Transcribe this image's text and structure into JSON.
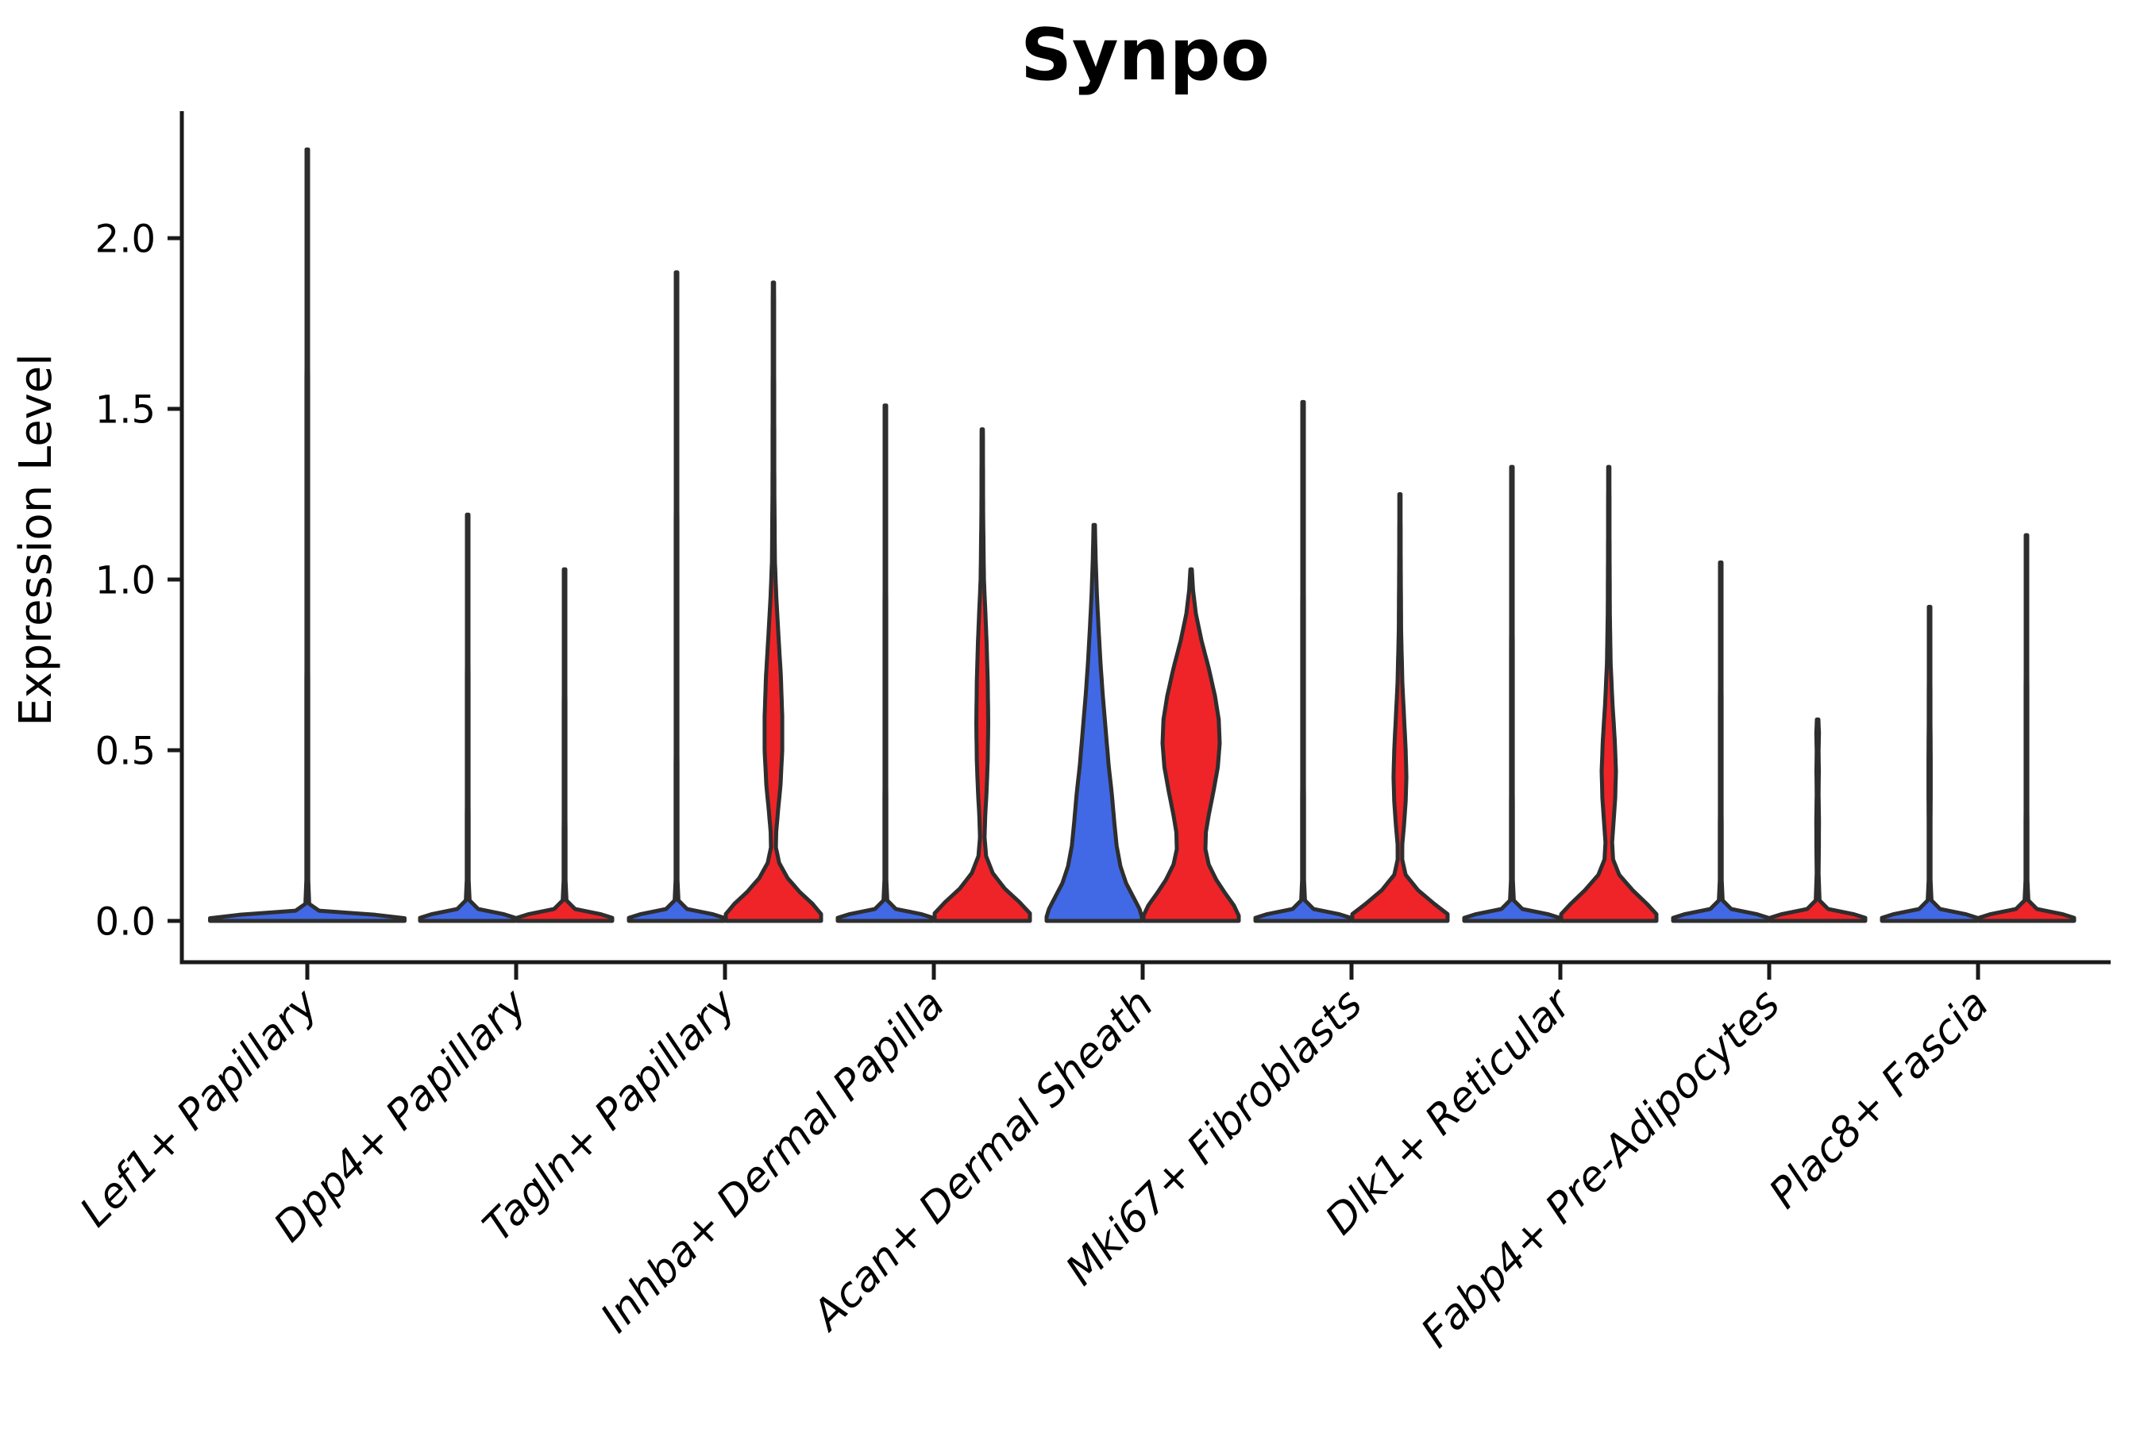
{
  "chart_data": {
    "type": "violin",
    "title": "Synpo",
    "ylabel": "Expression Level",
    "yticks": [
      "0.0",
      "0.5",
      "1.0",
      "1.5",
      "2.0"
    ],
    "ylim": [
      0,
      2.4
    ],
    "grid": false,
    "legend": "none",
    "split_groups": [
      "group1-blue",
      "group2-red"
    ],
    "categories": [
      "Lef1+ Papillary",
      "Dpp4+ Papillary",
      "Tagln+ Papillary",
      "Inhba+ Dermal Papilla",
      "Acan+ Dermal Sheath",
      "Mki67+ Fibroblasts",
      "Dlk1+ Reticular",
      "Fabp4+ Pre-Adipocytes",
      "Plac8+ Fascia"
    ],
    "violins": [
      {
        "category_index": 0,
        "side": "center",
        "color": "blue",
        "max": 2.26,
        "profile": [
          [
            2.26,
            0.008
          ],
          [
            1.1,
            0.009
          ],
          [
            0.12,
            0.01
          ],
          [
            0.05,
            0.02
          ],
          [
            0.03,
            0.12
          ],
          [
            0.018,
            0.7
          ],
          [
            0.008,
            1
          ],
          [
            0,
            1
          ]
        ]
      },
      {
        "category_index": 1,
        "side": "left",
        "color": "blue",
        "max": 1.19,
        "profile": [
          [
            1.19,
            0.016
          ],
          [
            0.6,
            0.018
          ],
          [
            0.12,
            0.02
          ],
          [
            0.06,
            0.04
          ],
          [
            0.035,
            0.22
          ],
          [
            0.02,
            0.75
          ],
          [
            0.009,
            1
          ],
          [
            0,
            1
          ]
        ]
      },
      {
        "category_index": 1,
        "side": "right",
        "color": "red",
        "max": 1.03,
        "profile": [
          [
            1.03,
            0.016
          ],
          [
            0.52,
            0.018
          ],
          [
            0.12,
            0.02
          ],
          [
            0.06,
            0.04
          ],
          [
            0.035,
            0.22
          ],
          [
            0.02,
            0.75
          ],
          [
            0.009,
            1
          ],
          [
            0,
            1
          ]
        ]
      },
      {
        "category_index": 2,
        "side": "left",
        "color": "blue",
        "max": 1.9,
        "profile": [
          [
            1.9,
            0.016
          ],
          [
            0.95,
            0.018
          ],
          [
            0.12,
            0.02
          ],
          [
            0.06,
            0.04
          ],
          [
            0.035,
            0.22
          ],
          [
            0.02,
            0.75
          ],
          [
            0.009,
            1
          ],
          [
            0,
            1
          ]
        ]
      },
      {
        "category_index": 2,
        "side": "right",
        "color": "red",
        "max": 1.87,
        "profile": [
          [
            1.87,
            0.014
          ],
          [
            1.55,
            0.016
          ],
          [
            1.25,
            0.02
          ],
          [
            1.05,
            0.032
          ],
          [
            0.95,
            0.06
          ],
          [
            0.85,
            0.1
          ],
          [
            0.72,
            0.155
          ],
          [
            0.6,
            0.185
          ],
          [
            0.5,
            0.185
          ],
          [
            0.4,
            0.15
          ],
          [
            0.32,
            0.095
          ],
          [
            0.26,
            0.058
          ],
          [
            0.215,
            0.052
          ],
          [
            0.17,
            0.12
          ],
          [
            0.125,
            0.3
          ],
          [
            0.085,
            0.55
          ],
          [
            0.05,
            0.82
          ],
          [
            0.02,
            1
          ],
          [
            0,
            1
          ]
        ]
      },
      {
        "category_index": 3,
        "side": "left",
        "color": "blue",
        "max": 1.51,
        "profile": [
          [
            1.51,
            0.016
          ],
          [
            0.76,
            0.018
          ],
          [
            0.12,
            0.02
          ],
          [
            0.06,
            0.04
          ],
          [
            0.035,
            0.22
          ],
          [
            0.02,
            0.75
          ],
          [
            0.009,
            1
          ],
          [
            0,
            1
          ]
        ]
      },
      {
        "category_index": 3,
        "side": "right",
        "color": "red",
        "max": 1.44,
        "profile": [
          [
            1.44,
            0.014
          ],
          [
            1.2,
            0.018
          ],
          [
            1.0,
            0.035
          ],
          [
            0.92,
            0.06
          ],
          [
            0.82,
            0.09
          ],
          [
            0.7,
            0.115
          ],
          [
            0.58,
            0.125
          ],
          [
            0.47,
            0.115
          ],
          [
            0.38,
            0.09
          ],
          [
            0.3,
            0.06
          ],
          [
            0.245,
            0.048
          ],
          [
            0.19,
            0.08
          ],
          [
            0.14,
            0.22
          ],
          [
            0.095,
            0.47
          ],
          [
            0.055,
            0.78
          ],
          [
            0.022,
            1
          ],
          [
            0,
            1
          ]
        ]
      },
      {
        "category_index": 4,
        "side": "left",
        "color": "blue",
        "max": 1.16,
        "profile": [
          [
            1.16,
            0.015
          ],
          [
            1.06,
            0.03
          ],
          [
            0.96,
            0.055
          ],
          [
            0.86,
            0.09
          ],
          [
            0.76,
            0.13
          ],
          [
            0.66,
            0.18
          ],
          [
            0.56,
            0.24
          ],
          [
            0.46,
            0.3
          ],
          [
            0.37,
            0.37
          ],
          [
            0.29,
            0.42
          ],
          [
            0.22,
            0.47
          ],
          [
            0.16,
            0.55
          ],
          [
            0.11,
            0.67
          ],
          [
            0.07,
            0.82
          ],
          [
            0.035,
            0.95
          ],
          [
            0.012,
            1
          ],
          [
            0,
            1
          ]
        ]
      },
      {
        "category_index": 4,
        "side": "right",
        "color": "red",
        "max": 1.03,
        "profile": [
          [
            1.03,
            0.015
          ],
          [
            0.97,
            0.04
          ],
          [
            0.9,
            0.1
          ],
          [
            0.82,
            0.22
          ],
          [
            0.74,
            0.37
          ],
          [
            0.66,
            0.5
          ],
          [
            0.59,
            0.58
          ],
          [
            0.52,
            0.6
          ],
          [
            0.45,
            0.56
          ],
          [
            0.38,
            0.47
          ],
          [
            0.31,
            0.37
          ],
          [
            0.26,
            0.31
          ],
          [
            0.21,
            0.3
          ],
          [
            0.165,
            0.37
          ],
          [
            0.12,
            0.53
          ],
          [
            0.08,
            0.72
          ],
          [
            0.045,
            0.9
          ],
          [
            0.015,
            1
          ],
          [
            0,
            1
          ]
        ]
      },
      {
        "category_index": 5,
        "side": "left",
        "color": "blue",
        "max": 1.52,
        "profile": [
          [
            1.52,
            0.016
          ],
          [
            0.76,
            0.018
          ],
          [
            0.12,
            0.02
          ],
          [
            0.06,
            0.04
          ],
          [
            0.035,
            0.22
          ],
          [
            0.02,
            0.75
          ],
          [
            0.009,
            1
          ],
          [
            0,
            1
          ]
        ]
      },
      {
        "category_index": 5,
        "side": "right",
        "color": "red",
        "max": 1.25,
        "profile": [
          [
            1.25,
            0.013
          ],
          [
            1.05,
            0.016
          ],
          [
            0.85,
            0.025
          ],
          [
            0.7,
            0.05
          ],
          [
            0.6,
            0.085
          ],
          [
            0.5,
            0.12
          ],
          [
            0.42,
            0.135
          ],
          [
            0.35,
            0.12
          ],
          [
            0.28,
            0.085
          ],
          [
            0.225,
            0.05
          ],
          [
            0.18,
            0.048
          ],
          [
            0.135,
            0.12
          ],
          [
            0.09,
            0.38
          ],
          [
            0.05,
            0.72
          ],
          [
            0.02,
            1
          ],
          [
            0,
            1
          ]
        ]
      },
      {
        "category_index": 6,
        "side": "left",
        "color": "blue",
        "max": 1.33,
        "profile": [
          [
            1.33,
            0.016
          ],
          [
            0.67,
            0.018
          ],
          [
            0.12,
            0.02
          ],
          [
            0.06,
            0.04
          ],
          [
            0.035,
            0.22
          ],
          [
            0.02,
            0.75
          ],
          [
            0.009,
            1
          ],
          [
            0,
            1
          ]
        ]
      },
      {
        "category_index": 6,
        "side": "right",
        "color": "red",
        "max": 1.33,
        "profile": [
          [
            1.33,
            0.013
          ],
          [
            1.1,
            0.016
          ],
          [
            0.9,
            0.022
          ],
          [
            0.75,
            0.04
          ],
          [
            0.63,
            0.08
          ],
          [
            0.53,
            0.125
          ],
          [
            0.44,
            0.15
          ],
          [
            0.36,
            0.135
          ],
          [
            0.29,
            0.1
          ],
          [
            0.23,
            0.07
          ],
          [
            0.18,
            0.09
          ],
          [
            0.135,
            0.22
          ],
          [
            0.09,
            0.5
          ],
          [
            0.05,
            0.8
          ],
          [
            0.02,
            1
          ],
          [
            0,
            1
          ]
        ]
      },
      {
        "category_index": 7,
        "side": "left",
        "color": "blue",
        "max": 1.05,
        "profile": [
          [
            1.05,
            0.016
          ],
          [
            0.53,
            0.018
          ],
          [
            0.12,
            0.02
          ],
          [
            0.06,
            0.04
          ],
          [
            0.035,
            0.22
          ],
          [
            0.02,
            0.75
          ],
          [
            0.009,
            1
          ],
          [
            0,
            1
          ]
        ]
      },
      {
        "category_index": 7,
        "side": "right",
        "color": "red",
        "max": 0.59,
        "profile": [
          [
            0.59,
            0.016
          ],
          [
            0.55,
            0.028
          ],
          [
            0.5,
            0.02
          ],
          [
            0.44,
            0.026
          ],
          [
            0.37,
            0.02
          ],
          [
            0.3,
            0.028
          ],
          [
            0.22,
            0.026
          ],
          [
            0.14,
            0.02
          ],
          [
            0.06,
            0.04
          ],
          [
            0.035,
            0.22
          ],
          [
            0.02,
            0.75
          ],
          [
            0.009,
            1
          ],
          [
            0,
            1
          ]
        ]
      },
      {
        "category_index": 8,
        "side": "left",
        "color": "blue",
        "max": 0.92,
        "profile": [
          [
            0.92,
            0.016
          ],
          [
            0.6,
            0.018
          ],
          [
            0.46,
            0.024
          ],
          [
            0.38,
            0.024
          ],
          [
            0.3,
            0.02
          ],
          [
            0.12,
            0.02
          ],
          [
            0.06,
            0.04
          ],
          [
            0.035,
            0.22
          ],
          [
            0.02,
            0.75
          ],
          [
            0.009,
            1
          ],
          [
            0,
            1
          ]
        ]
      },
      {
        "category_index": 8,
        "side": "right",
        "color": "red",
        "max": 1.13,
        "profile": [
          [
            1.13,
            0.016
          ],
          [
            0.57,
            0.018
          ],
          [
            0.12,
            0.02
          ],
          [
            0.06,
            0.04
          ],
          [
            0.035,
            0.22
          ],
          [
            0.02,
            0.75
          ],
          [
            0.009,
            1
          ],
          [
            0,
            1
          ]
        ]
      }
    ]
  },
  "colors": {
    "blue": "#4169E6",
    "red": "#EF2428",
    "outline": "#2E2E2E",
    "axis": "#1A1A1A",
    "text": "#000000"
  }
}
